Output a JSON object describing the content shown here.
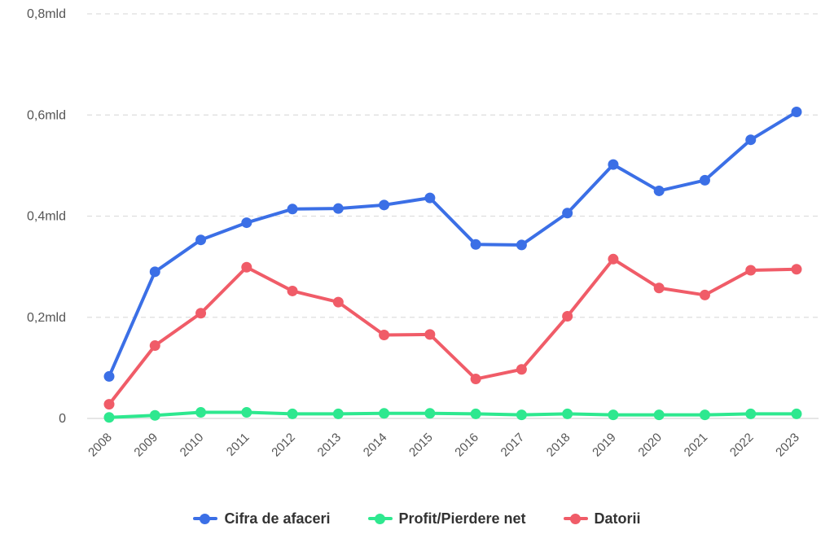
{
  "chart_data": {
    "type": "line",
    "categories": [
      "2008",
      "2009",
      "2010",
      "2011",
      "2012",
      "2013",
      "2014",
      "2015",
      "2016",
      "2017",
      "2018",
      "2019",
      "2020",
      "2021",
      "2022",
      "2023"
    ],
    "ylim": [
      0,
      0.8
    ],
    "y_ticks": [
      {
        "value": 0,
        "label": "0"
      },
      {
        "value": 0.2,
        "label": "0,2mld"
      },
      {
        "value": 0.4,
        "label": "0,4mld"
      },
      {
        "value": 0.6,
        "label": "0,6mld"
      },
      {
        "value": 0.8,
        "label": "0,8mld"
      }
    ],
    "grid": true,
    "legend_position": "bottom",
    "series": [
      {
        "name": "Cifra de afaceri",
        "color": "#3b6fe6",
        "values": [
          0.083,
          0.29,
          0.353,
          0.387,
          0.414,
          0.415,
          0.422,
          0.436,
          0.344,
          0.343,
          0.406,
          0.502,
          0.45,
          0.471,
          0.551,
          0.606
        ]
      },
      {
        "name": "Profit/Pierdere net",
        "color": "#2ee88f",
        "values": [
          0.002,
          0.006,
          0.012,
          0.012,
          0.009,
          0.009,
          0.01,
          0.01,
          0.009,
          0.007,
          0.009,
          0.007,
          0.007,
          0.007,
          0.009,
          0.009
        ]
      },
      {
        "name": "Datorii",
        "color": "#f05c68",
        "values": [
          0.028,
          0.144,
          0.208,
          0.299,
          0.252,
          0.23,
          0.165,
          0.166,
          0.078,
          0.097,
          0.202,
          0.315,
          0.258,
          0.244,
          0.293,
          0.295
        ]
      }
    ]
  }
}
